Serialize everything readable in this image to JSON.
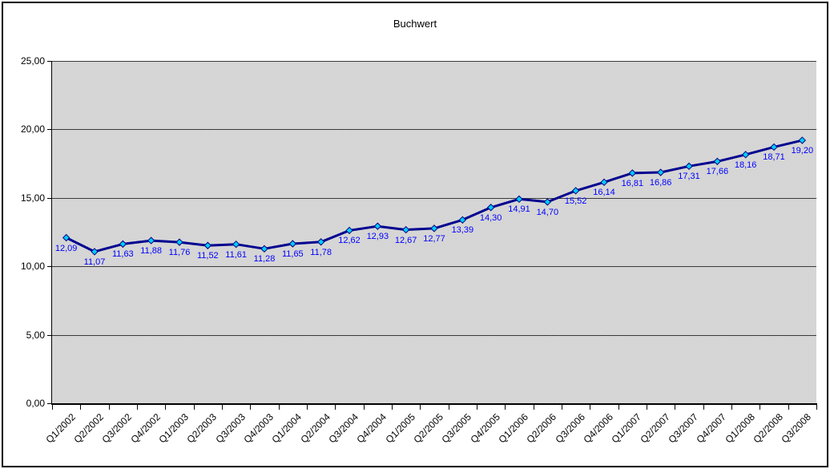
{
  "window": {
    "background": "#ffffff",
    "border_color": "#000000"
  },
  "chart_data": {
    "type": "line",
    "title": "Buchwert",
    "categories": [
      "Q1/2002",
      "Q2/2002",
      "Q3/2002",
      "Q4/2002",
      "Q1/2003",
      "Q2/2003",
      "Q3/2003",
      "Q4/2003",
      "Q1/2004",
      "Q2/2004",
      "Q3/2004",
      "Q4/2004",
      "Q1/2005",
      "Q2/2005",
      "Q3/2005",
      "Q4/2005",
      "Q1/2006",
      "Q2/2006",
      "Q3/2006",
      "Q4/2006",
      "Q1/2007",
      "Q2/2007",
      "Q3/2007",
      "Q4/2007",
      "Q1/2008",
      "Q2/2008",
      "Q3/2008"
    ],
    "values": [
      12.09,
      11.07,
      11.63,
      11.88,
      11.76,
      11.52,
      11.61,
      11.28,
      11.65,
      11.78,
      12.62,
      12.93,
      12.67,
      12.77,
      13.39,
      14.3,
      14.91,
      14.7,
      15.52,
      16.14,
      16.81,
      16.86,
      17.31,
      17.66,
      18.16,
      18.71,
      19.2
    ],
    "point_labels": [
      "12,09",
      "11,07",
      "11,63",
      "11,88",
      "11,76",
      "11,52",
      "11,61",
      "11,28",
      "11,65",
      "11,78",
      "12,62",
      "12,93",
      "12,67",
      "12,77",
      "13,39",
      "14,30",
      "14,91",
      "14,70",
      "15,52",
      "16,14",
      "16,81",
      "16,86",
      "17,31",
      "17,66",
      "18,16",
      "18,71",
      "19,20"
    ],
    "xlabel": "",
    "ylabel": "",
    "ylim": [
      0,
      25
    ],
    "y_tick_step": 5,
    "y_tick_labels": [
      "0,00",
      "5,00",
      "10,00",
      "15,00",
      "20,00",
      "25,00"
    ],
    "grid": true,
    "legend_position": "none",
    "colors": {
      "line": "#000090",
      "marker_fill": "#00ccff",
      "marker_stroke": "#000080",
      "data_label": "#0000ff",
      "gridline": "#3a3a3a",
      "axis": "#000000",
      "text": "#000000"
    }
  }
}
